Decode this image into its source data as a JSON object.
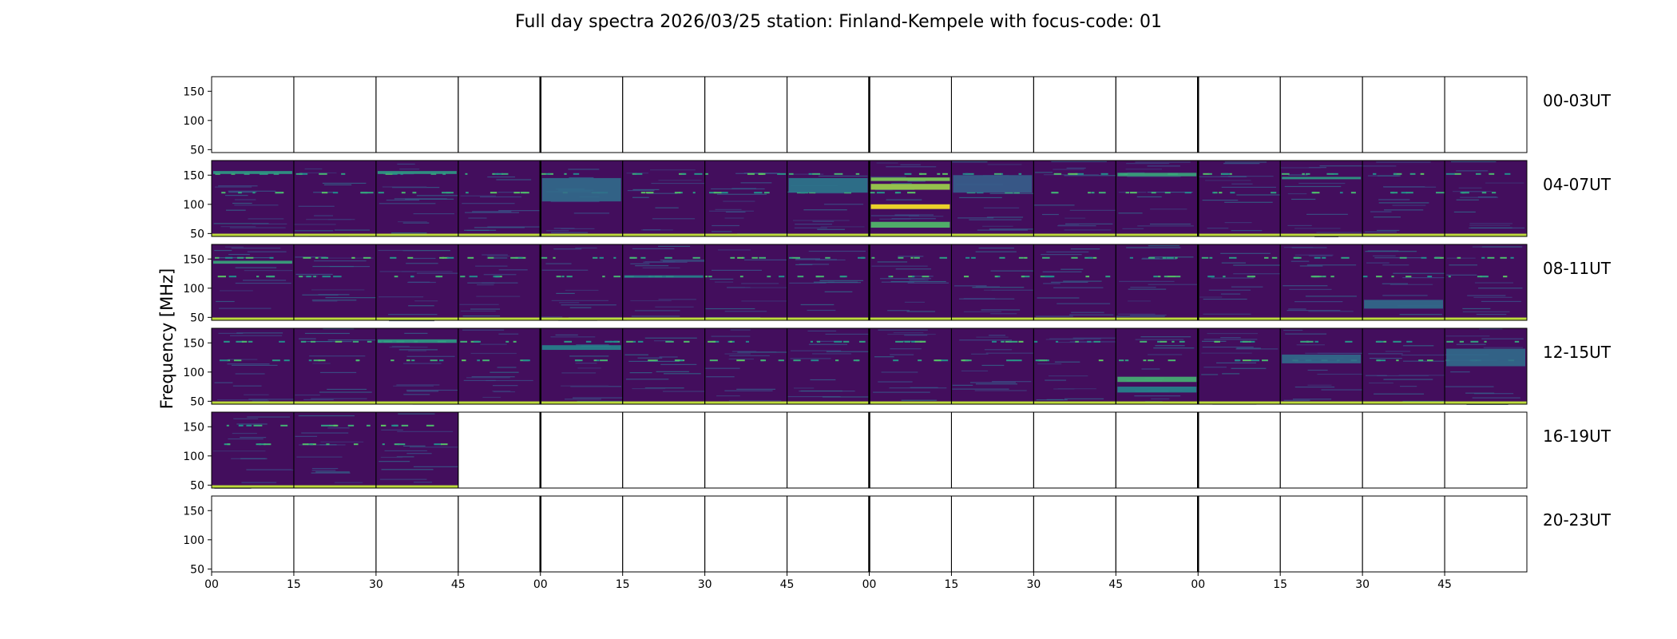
{
  "chart_data": {
    "type": "heatmap",
    "title": "Full day spectra 2026/03/25 station: Finland-Kempele with focus-code: 01",
    "ylabel": "Frequency [MHz]",
    "xlabel": "",
    "ylim": [
      45,
      175
    ],
    "yticks": [
      50,
      100,
      150
    ],
    "xtick_labels": [
      "00",
      "15",
      "30",
      "45",
      "00",
      "15",
      "30",
      "45",
      "00",
      "15",
      "30",
      "45",
      "00",
      "15",
      "30",
      "45"
    ],
    "row_labels": [
      "00-03UT",
      "04-07UT",
      "08-11UT",
      "12-15UT",
      "16-19UT",
      "20-23UT"
    ],
    "panels_per_row": 16,
    "minutes_per_panel": 15,
    "colormap": "viridis",
    "hour_boundary_color": "#000000",
    "data_available": [
      [
        0,
        0,
        0,
        0,
        0,
        0,
        0,
        0,
        0,
        0,
        0,
        0,
        0,
        0,
        0,
        0
      ],
      [
        1,
        1,
        1,
        1,
        1,
        1,
        1,
        1,
        1,
        1,
        1,
        1,
        1,
        1,
        1,
        1
      ],
      [
        1,
        1,
        1,
        1,
        1,
        1,
        1,
        1,
        1,
        1,
        1,
        1,
        1,
        1,
        1,
        1
      ],
      [
        1,
        1,
        1,
        1,
        1,
        1,
        1,
        1,
        1,
        1,
        1,
        1,
        1,
        1,
        1,
        1
      ],
      [
        1,
        1,
        1,
        0,
        0,
        0,
        0,
        0,
        0,
        0,
        0,
        0,
        0,
        0,
        0,
        0
      ],
      [
        0,
        0,
        0,
        0,
        0,
        0,
        0,
        0,
        0,
        0,
        0,
        0,
        0,
        0,
        0,
        0
      ]
    ],
    "emission_bands_mhz": [
      {
        "row": 1,
        "col": 0,
        "range": [
          152,
          157
        ],
        "level": 0.55
      },
      {
        "row": 1,
        "col": 2,
        "range": [
          152,
          157
        ],
        "level": 0.55
      },
      {
        "row": 1,
        "col": 4,
        "range": [
          105,
          145
        ],
        "level": 0.35
      },
      {
        "row": 1,
        "col": 7,
        "range": [
          120,
          145
        ],
        "level": 0.4
      },
      {
        "row": 1,
        "col": 8,
        "range": [
          140,
          146
        ],
        "level": 0.8
      },
      {
        "row": 1,
        "col": 8,
        "range": [
          125,
          135
        ],
        "level": 0.85
      },
      {
        "row": 1,
        "col": 8,
        "range": [
          92,
          100
        ],
        "level": 1.0
      },
      {
        "row": 1,
        "col": 8,
        "range": [
          60,
          70
        ],
        "level": 0.7
      },
      {
        "row": 1,
        "col": 9,
        "range": [
          120,
          150
        ],
        "level": 0.3
      },
      {
        "row": 1,
        "col": 11,
        "range": [
          148,
          154
        ],
        "level": 0.6
      },
      {
        "row": 1,
        "col": 13,
        "range": [
          143,
          147
        ],
        "level": 0.55
      },
      {
        "row": 2,
        "col": 0,
        "range": [
          142,
          147
        ],
        "level": 0.6
      },
      {
        "row": 2,
        "col": 5,
        "range": [
          118,
          122
        ],
        "level": 0.45
      },
      {
        "row": 2,
        "col": 14,
        "range": [
          65,
          80
        ],
        "level": 0.35
      },
      {
        "row": 3,
        "col": 2,
        "range": [
          150,
          156
        ],
        "level": 0.55
      },
      {
        "row": 3,
        "col": 4,
        "range": [
          138,
          146
        ],
        "level": 0.45
      },
      {
        "row": 3,
        "col": 11,
        "range": [
          83,
          92
        ],
        "level": 0.65
      },
      {
        "row": 3,
        "col": 11,
        "range": [
          65,
          75
        ],
        "level": 0.45
      },
      {
        "row": 3,
        "col": 13,
        "range": [
          115,
          130
        ],
        "level": 0.35
      },
      {
        "row": 3,
        "col": 15,
        "range": [
          110,
          140
        ],
        "level": 0.35
      }
    ],
    "grid": false,
    "legend": "none"
  }
}
